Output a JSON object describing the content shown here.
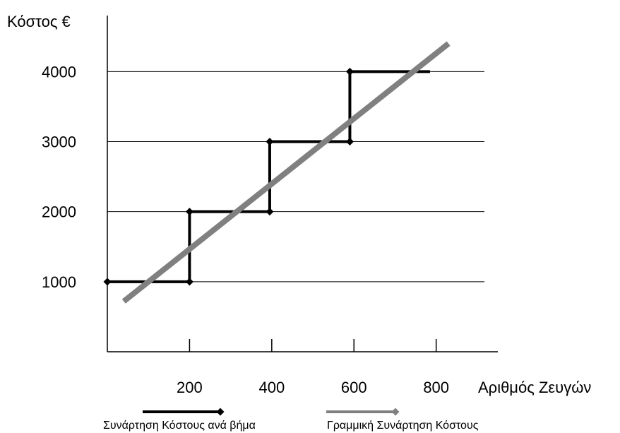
{
  "chart_data": {
    "type": "line",
    "ylabel": "Κόστος €",
    "xlabel": "Αριθμός Ζευγών",
    "xlim": [
      0,
      950
    ],
    "ylim": [
      0,
      4800
    ],
    "x_ticks": [
      200,
      400,
      600,
      800
    ],
    "y_ticks": [
      1000,
      2000,
      3000,
      4000
    ],
    "grid": "horizontal",
    "legend": "bottom",
    "series": [
      {
        "name": "Συνάρτηση Κόστους ανά βήμα",
        "color": "#000000",
        "marker": "diamond",
        "points": [
          [
            0,
            1000
          ],
          [
            200,
            1000
          ],
          [
            200,
            2000
          ],
          [
            395,
            2000
          ],
          [
            395,
            3000
          ],
          [
            590,
            3000
          ],
          [
            590,
            4000
          ],
          [
            785,
            4000
          ]
        ],
        "markers": [
          [
            0,
            1000
          ],
          [
            200,
            1000
          ],
          [
            200,
            2000
          ],
          [
            395,
            2000
          ],
          [
            395,
            3000
          ],
          [
            590,
            3000
          ],
          [
            590,
            4000
          ]
        ]
      },
      {
        "name": "Γραμμική Συνάρτηση Κόστους",
        "color": "#808080",
        "marker": "diamond",
        "points": [
          [
            40,
            720
          ],
          [
            830,
            4400
          ]
        ]
      }
    ]
  }
}
